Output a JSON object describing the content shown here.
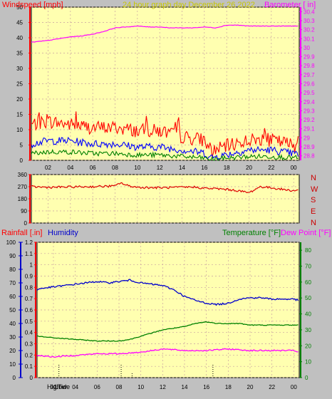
{
  "header": {
    "windspeed_label": "Windspeed [mph]",
    "title": "24 hour graph day  December 26 2022",
    "barometer_label": "Barometer [ in]"
  },
  "wind_dir_labels": [
    "N",
    "W",
    "S",
    "E",
    "N"
  ],
  "lower_header": {
    "rainfall_label": "Rainfall [.in]",
    "humidity_label": "Humidity",
    "temperature_label": "Temperature [°F]",
    "dewpoint_label": "Dew Point [°F]"
  },
  "bottom_markers": {
    "high_label": "High",
    "tide_label": "Tide",
    "low_label": "Low"
  },
  "colors": {
    "background": "#c0c0c0",
    "plot_bg": "#ffffb0",
    "grid": "#c8a0a0",
    "wind_gust": "#ff0000",
    "wind_avg": "#0000ff",
    "wind_low": "#008000",
    "barometer": "#ff00ff",
    "direction": "#dd0000",
    "humidity": "#0000cc",
    "temperature": "#008000",
    "dewpoint": "#ff00ff",
    "title": "#c8c800"
  },
  "chart_data": [
    {
      "type": "line",
      "name": "wind-and-barometer",
      "x_ticks": [
        "02",
        "04",
        "06",
        "08",
        "10",
        "12",
        "14",
        "16",
        "18",
        "20",
        "22",
        "00"
      ],
      "x_range_hours": [
        0.5,
        24.5
      ],
      "y_left_ticks": [
        "0",
        "5",
        "10",
        "15",
        "20",
        "25",
        "30",
        "35",
        "40",
        "45",
        "50"
      ],
      "y_left_range": [
        0,
        50
      ],
      "y_right_ticks": [
        "28.8",
        "28.9",
        "29",
        "29.1",
        "29.2",
        "29.3",
        "29.4",
        "29.5",
        "29.6",
        "29.7",
        "29.8",
        "29.9",
        "30",
        "30.1",
        "30.2",
        "30.3",
        "30.4"
      ],
      "y_right_range": [
        28.75,
        30.45
      ],
      "series": [
        {
          "key": "gust",
          "hours": [
            0.5,
            2,
            4,
            6,
            8,
            10,
            12,
            14,
            16,
            16.5,
            18,
            20,
            22,
            24.5
          ],
          "values": [
            11,
            12,
            11,
            10,
            10,
            9,
            9,
            7,
            6,
            2,
            4,
            6,
            6,
            4
          ]
        },
        {
          "key": "avg",
          "hours": [
            0.5,
            2,
            4,
            6,
            8,
            10,
            12,
            14,
            16,
            16.5,
            18,
            20,
            22,
            24.5
          ],
          "values": [
            5,
            6,
            6,
            5,
            5,
            4,
            4,
            3,
            2,
            0.5,
            1.5,
            3,
            3,
            1.5
          ]
        },
        {
          "key": "low",
          "hours": [
            0.5,
            2,
            4,
            6,
            8,
            10,
            12,
            14,
            16,
            16.5,
            18,
            20,
            22,
            24.5
          ],
          "values": [
            2,
            2.5,
            2.5,
            2,
            2,
            1.5,
            1.5,
            1,
            0.5,
            0,
            0.5,
            1,
            1,
            0.5
          ]
        },
        {
          "key": "barometer",
          "hours": [
            0.5,
            2,
            4,
            5,
            6,
            7,
            8,
            9,
            10,
            11,
            12,
            13,
            14,
            15,
            16,
            17,
            18,
            19,
            20,
            21,
            22,
            23,
            24,
            24.5
          ],
          "values": [
            30.06,
            30.08,
            30.12,
            30.13,
            30.15,
            30.18,
            30.22,
            30.23,
            30.24,
            30.23,
            30.23,
            30.22,
            30.22,
            30.22,
            30.23,
            30.22,
            30.25,
            30.25,
            30.24,
            30.24,
            30.24,
            30.24,
            30.24,
            30.24
          ]
        }
      ]
    },
    {
      "type": "line",
      "name": "wind-direction",
      "y_ticks": [
        "0",
        "90",
        "180",
        "270",
        "360"
      ],
      "y_range": [
        0,
        360
      ],
      "series": [
        {
          "key": "direction",
          "hours": [
            0.5,
            2,
            4,
            6,
            8,
            8.5,
            9,
            10,
            12,
            14,
            15,
            16,
            17,
            18,
            19,
            20,
            21,
            22,
            23,
            24,
            24.5
          ],
          "values": [
            270,
            265,
            268,
            270,
            275,
            300,
            280,
            265,
            262,
            265,
            268,
            258,
            255,
            250,
            240,
            225,
            270,
            262,
            250,
            240,
            245
          ]
        }
      ]
    },
    {
      "type": "line",
      "name": "humidity-temp-dewpoint",
      "x_ticks": [
        "02",
        "04",
        "06",
        "08",
        "10",
        "12",
        "14",
        "16",
        "18",
        "20",
        "22",
        "00"
      ],
      "y_humidity_ticks": [
        "0",
        "10",
        "20",
        "30",
        "40",
        "50",
        "60",
        "70",
        "80",
        "90",
        "100"
      ],
      "y_rain_ticks": [
        "0",
        "0.1",
        "0.2",
        "0.3",
        "0.4",
        "0.5",
        "0.6",
        "0.7",
        "0.8",
        "0.9",
        "1",
        "1.1",
        "1.2"
      ],
      "y_temp_ticks": [
        "0",
        "10",
        "20",
        "30",
        "40",
        "50",
        "60",
        "70",
        "80"
      ],
      "y_rain_range": [
        0,
        1.2
      ],
      "y_temp_range": [
        0,
        85
      ],
      "series": [
        {
          "key": "humidity",
          "hours": [
            0.5,
            1,
            2,
            4,
            5,
            6,
            7,
            8,
            9,
            10,
            11,
            12,
            13,
            14,
            15,
            16,
            17,
            18,
            19,
            20,
            21,
            22,
            23,
            24,
            24.5
          ],
          "values": [
            65,
            66,
            67,
            69,
            70,
            71,
            70,
            71,
            72,
            70,
            69,
            68,
            65,
            60,
            57,
            55,
            54,
            55,
            58,
            59,
            59,
            58,
            58,
            58,
            57
          ]
        },
        {
          "key": "temperature",
          "hours": [
            0.5,
            2,
            4,
            6,
            7,
            8,
            9,
            10,
            11,
            12,
            13,
            14,
            15,
            16,
            17,
            18,
            19,
            20,
            21,
            22,
            23,
            24,
            24.5
          ],
          "values": [
            26,
            25,
            24,
            23,
            23,
            23,
            24,
            26,
            28,
            30,
            31,
            32,
            34,
            35,
            34,
            34,
            34,
            33,
            33,
            33,
            33,
            33,
            33
          ]
        },
        {
          "key": "dewpoint",
          "hours": [
            0.5,
            2,
            4,
            6,
            8,
            10,
            12,
            14,
            16,
            18,
            20,
            22,
            24,
            24.5
          ],
          "values": [
            14,
            13,
            14,
            15,
            15,
            16,
            18,
            17,
            17,
            18,
            17,
            17,
            17,
            16
          ]
        }
      ]
    }
  ]
}
